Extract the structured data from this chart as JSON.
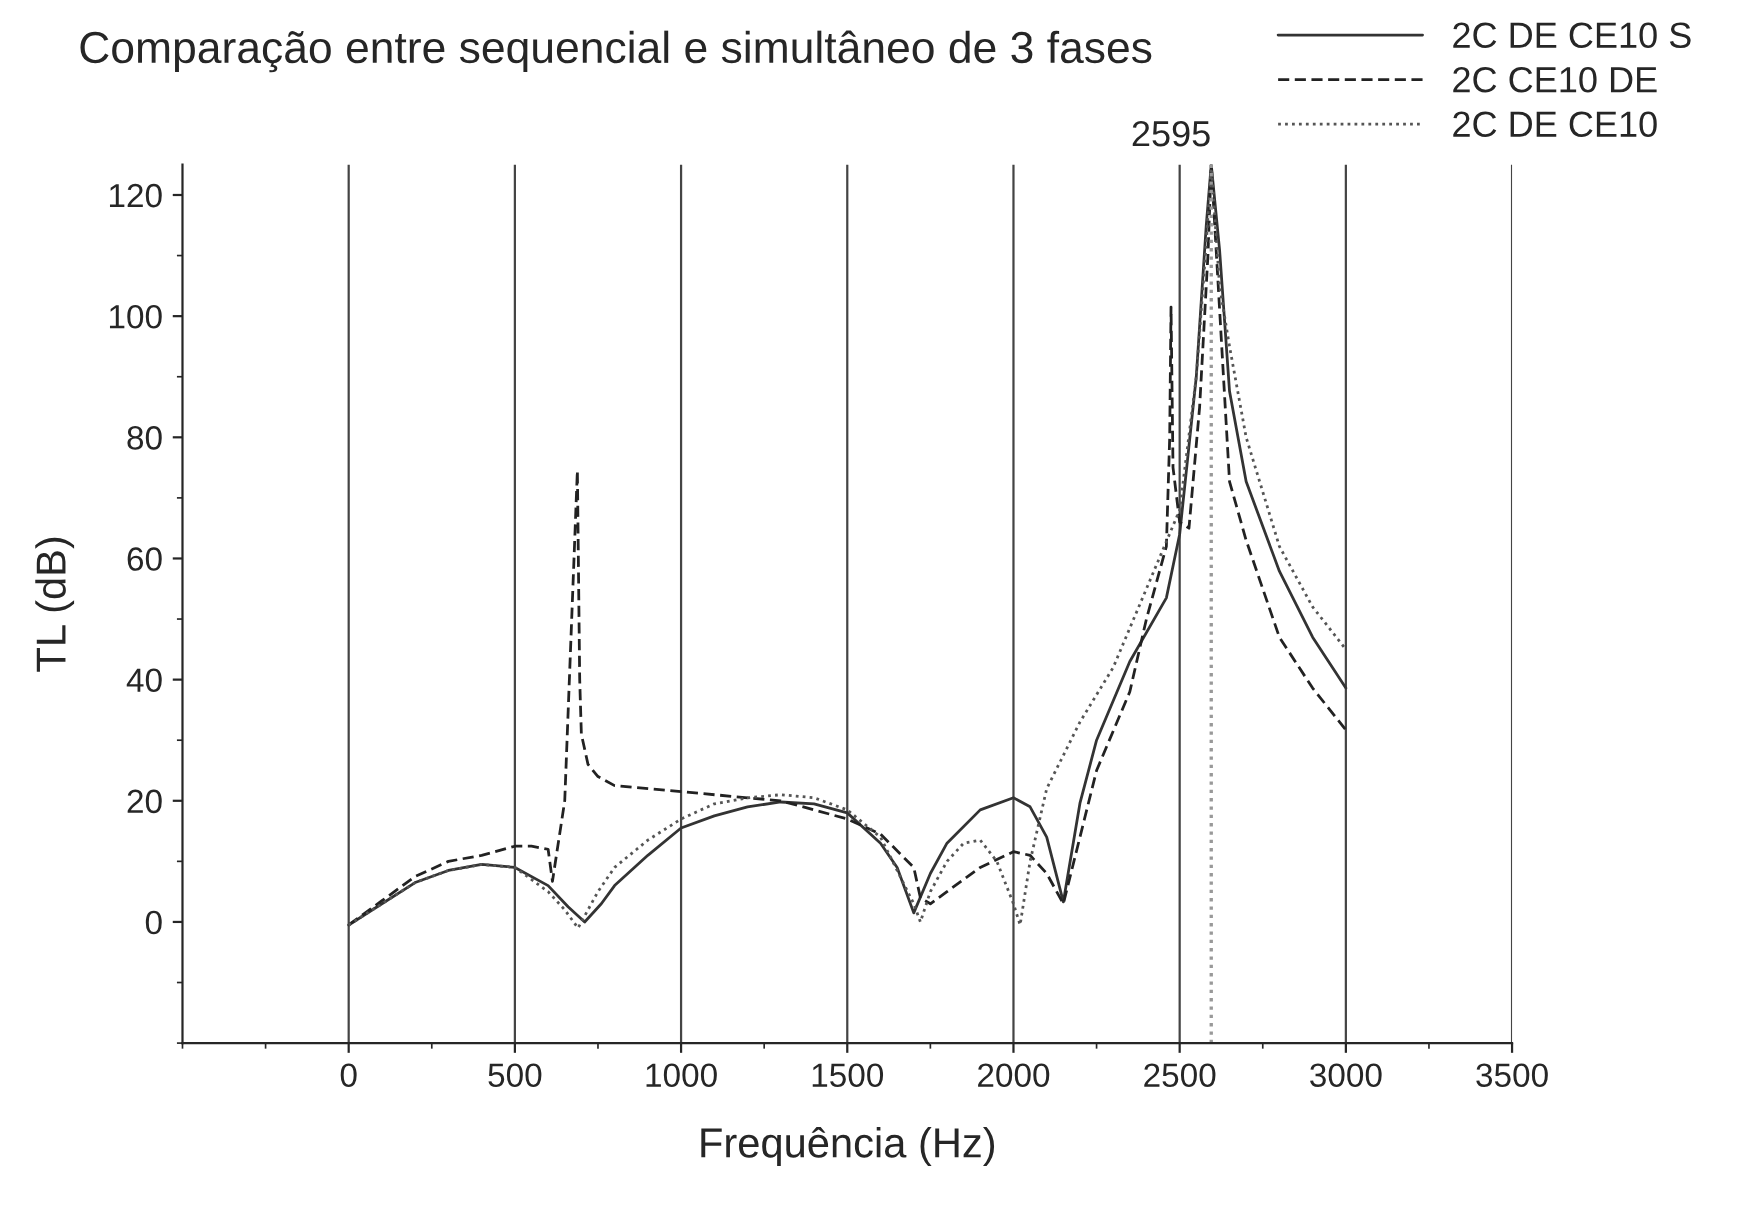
{
  "chart_data": {
    "type": "line",
    "title": "Comparação entre sequencial e simultâneo de 3 fases",
    "xlabel": "Frequência (Hz)",
    "ylabel": "TL (dB)",
    "xlim": [
      -500,
      3500
    ],
    "xticks": [
      0,
      500,
      1000,
      1500,
      2000,
      2500,
      3000,
      3500
    ],
    "ylim": [
      -20,
      125
    ],
    "yticks": [
      0,
      20,
      40,
      60,
      80,
      100,
      120
    ],
    "grid": "x",
    "legend": "top right",
    "ref_lines": [
      {
        "axis": "x",
        "value": 2595,
        "label": "2595",
        "color": "#999999",
        "line_style": "dotted"
      }
    ],
    "series": [
      {
        "name": "2C DE CE10 S",
        "color": "#333333",
        "line_style": "solid",
        "x": [
          0,
          100,
          200,
          300,
          400,
          500,
          600,
          660,
          710,
          760,
          800,
          900,
          1000,
          1100,
          1200,
          1300,
          1400,
          1500,
          1600,
          1650,
          1700,
          1750,
          1800,
          1900,
          2000,
          2050,
          2100,
          2150,
          2200,
          2250,
          2350,
          2460,
          2500,
          2550,
          2580,
          2595,
          2620,
          2650,
          2700,
          2800,
          2900,
          3000
        ],
        "values": [
          -0.5,
          3,
          6.5,
          8.5,
          9.5,
          9,
          6,
          2.5,
          0,
          3,
          6,
          11,
          15.5,
          17.5,
          19,
          19.8,
          19.5,
          18,
          13,
          9,
          1.5,
          8,
          13,
          18.5,
          20.5,
          19,
          14,
          3.3,
          19.6,
          30,
          43,
          53.5,
          64,
          90,
          115,
          125,
          111,
          87.6,
          72.7,
          57.9,
          47,
          38.6
        ]
      },
      {
        "name": "2C CE10 DE",
        "color": "#222222",
        "line_style": "dashed",
        "x": [
          0,
          100,
          200,
          300,
          400,
          500,
          550,
          600,
          613,
          650,
          688,
          695,
          700,
          720,
          750,
          800,
          1000,
          1300,
          1500,
          1600,
          1700,
          1720,
          1750,
          1800,
          1900,
          2000,
          2050,
          2100,
          2150,
          2250,
          2350,
          2400,
          2460,
          2470,
          2474,
          2480,
          2500,
          2528,
          2560,
          2585,
          2595,
          2650,
          2700,
          2800,
          2900,
          3000
        ],
        "values": [
          -0.5,
          3.5,
          7.5,
          10,
          11,
          12.5,
          12.5,
          12,
          6.7,
          20,
          74.5,
          40,
          31,
          26,
          24,
          22.5,
          21.5,
          20,
          17,
          14.5,
          9,
          4,
          3,
          5,
          9,
          11.6,
          11,
          8,
          3,
          25,
          38,
          50,
          62,
          80,
          101.5,
          75,
          66,
          65,
          85,
          110,
          125,
          72.7,
          63,
          47,
          38.6,
          31.7
        ]
      },
      {
        "name": "2C DE CE10",
        "color": "#555555",
        "line_style": "dotted",
        "x": [
          0,
          100,
          200,
          300,
          400,
          500,
          600,
          650,
          690,
          750,
          800,
          900,
          1000,
          1100,
          1200,
          1300,
          1400,
          1500,
          1600,
          1700,
          1720,
          1750,
          1800,
          1850,
          1900,
          1950,
          2000,
          2020,
          2050,
          2100,
          2200,
          2300,
          2400,
          2500,
          2550,
          2580,
          2595,
          2620,
          2650,
          2700,
          2800,
          2900,
          3000
        ],
        "values": [
          -0.5,
          3,
          6.5,
          8.5,
          9.5,
          9,
          5,
          2,
          -1,
          5,
          9,
          13.5,
          17,
          19.5,
          20.5,
          21,
          20.5,
          18.5,
          14,
          3,
          0,
          5,
          10,
          13,
          13.5,
          10,
          3,
          -0.5,
          10,
          22,
          33,
          42,
          55,
          68,
          90,
          112,
          125,
          105,
          95,
          80,
          62,
          52,
          45
        ]
      }
    ]
  }
}
